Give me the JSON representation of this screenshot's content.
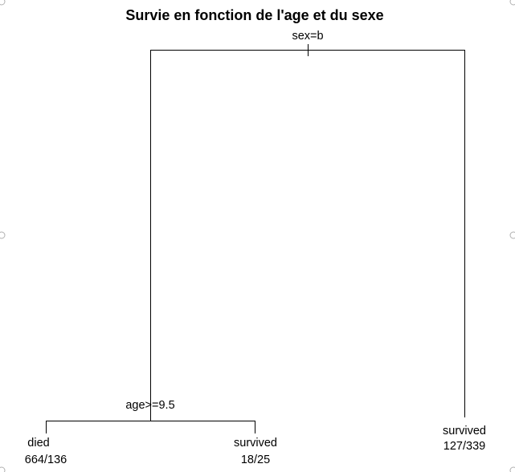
{
  "title": "Survie en fonction de l'age et du sexe",
  "tree": {
    "root_split": "sex=b",
    "left_split": "age>=9.5",
    "leaves": [
      {
        "class": "died",
        "counts": "664/136"
      },
      {
        "class": "survived",
        "counts": "18/25"
      },
      {
        "class": "survived",
        "counts": "127/339"
      }
    ]
  },
  "colors": {
    "line": "#000000",
    "text": "#000000",
    "handle_stroke": "#b0b0b0"
  }
}
